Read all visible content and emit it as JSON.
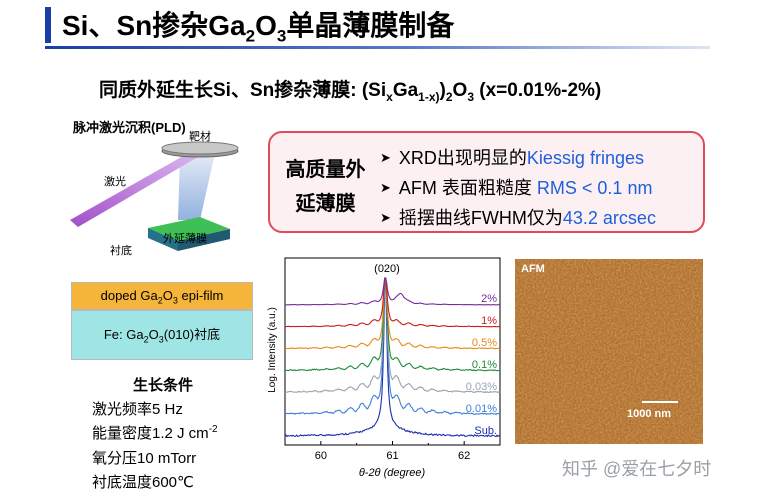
{
  "title": {
    "prefix": "Si、Sn掺杂Ga",
    "sub1": "2",
    "mid": "O",
    "sub2": "3",
    "suffix": "单晶薄膜制备"
  },
  "subtitle": {
    "p1": "同质外延生长Si、Sn掺杂薄膜: (Si",
    "s1": "x",
    "p2": "Ga",
    "s2": "1-x)",
    "p3": ")",
    "s3": "2",
    "p4": "O",
    "s4": "3",
    "p5": " (x=0.01%-2%)"
  },
  "pld": {
    "label": "脉冲激光沉积(PLD)",
    "target": "靶材",
    "laser": "激光",
    "film": "外延薄膜",
    "substrate": "衬底"
  },
  "layers": {
    "top_p1": "doped Ga",
    "top_s1": "2",
    "top_p2": "O",
    "top_s2": "3",
    "top_p3": " epi-film",
    "bot_p1": "Fe: Ga",
    "bot_s1": "2",
    "bot_p2": "O",
    "bot_s2": "3",
    "bot_p3": "(010)衬底"
  },
  "conditions": {
    "title": "生长条件",
    "items": [
      "激光频率5 Hz",
      "能量密度1.2 J cm",
      "氧分压10 mTorr",
      "衬底温度600℃"
    ],
    "sup": "-2"
  },
  "callout": {
    "head1": "高质量外",
    "head2": "延薄膜",
    "b1a": "XRD出现明显的",
    "b1b": "Kiessig fringes",
    "b2a": "AFM 表面粗糙度 ",
    "b2b": "RMS < 0.1 nm",
    "b3a": "摇摆曲线FWHM仅为",
    "b3b": "43.2 arcsec"
  },
  "chart_data": {
    "type": "line",
    "peak_label": "(020)",
    "xlabel": "θ-2θ (degree)",
    "ylabel": "Log. Intensity (a.u.)",
    "xlim": [
      59.5,
      62.5
    ],
    "xticks": [
      "60",
      "61",
      "62"
    ],
    "peak_x": 60.9,
    "series": [
      {
        "name": "Sub.",
        "color": "#1a2fb0"
      },
      {
        "name": "0.01%",
        "color": "#3f7fd6"
      },
      {
        "name": "0.03%",
        "color": "#9aa3b0"
      },
      {
        "name": "0.1%",
        "color": "#1e8a3a"
      },
      {
        "name": "0.5%",
        "color": "#e88a1a"
      },
      {
        "name": "1%",
        "color": "#d01a1a"
      },
      {
        "name": "2%",
        "color": "#7a2a9a"
      }
    ]
  },
  "afm": {
    "label": "AFM",
    "scale": "1000 nm"
  },
  "watermark": "知乎 @爱在七夕时"
}
